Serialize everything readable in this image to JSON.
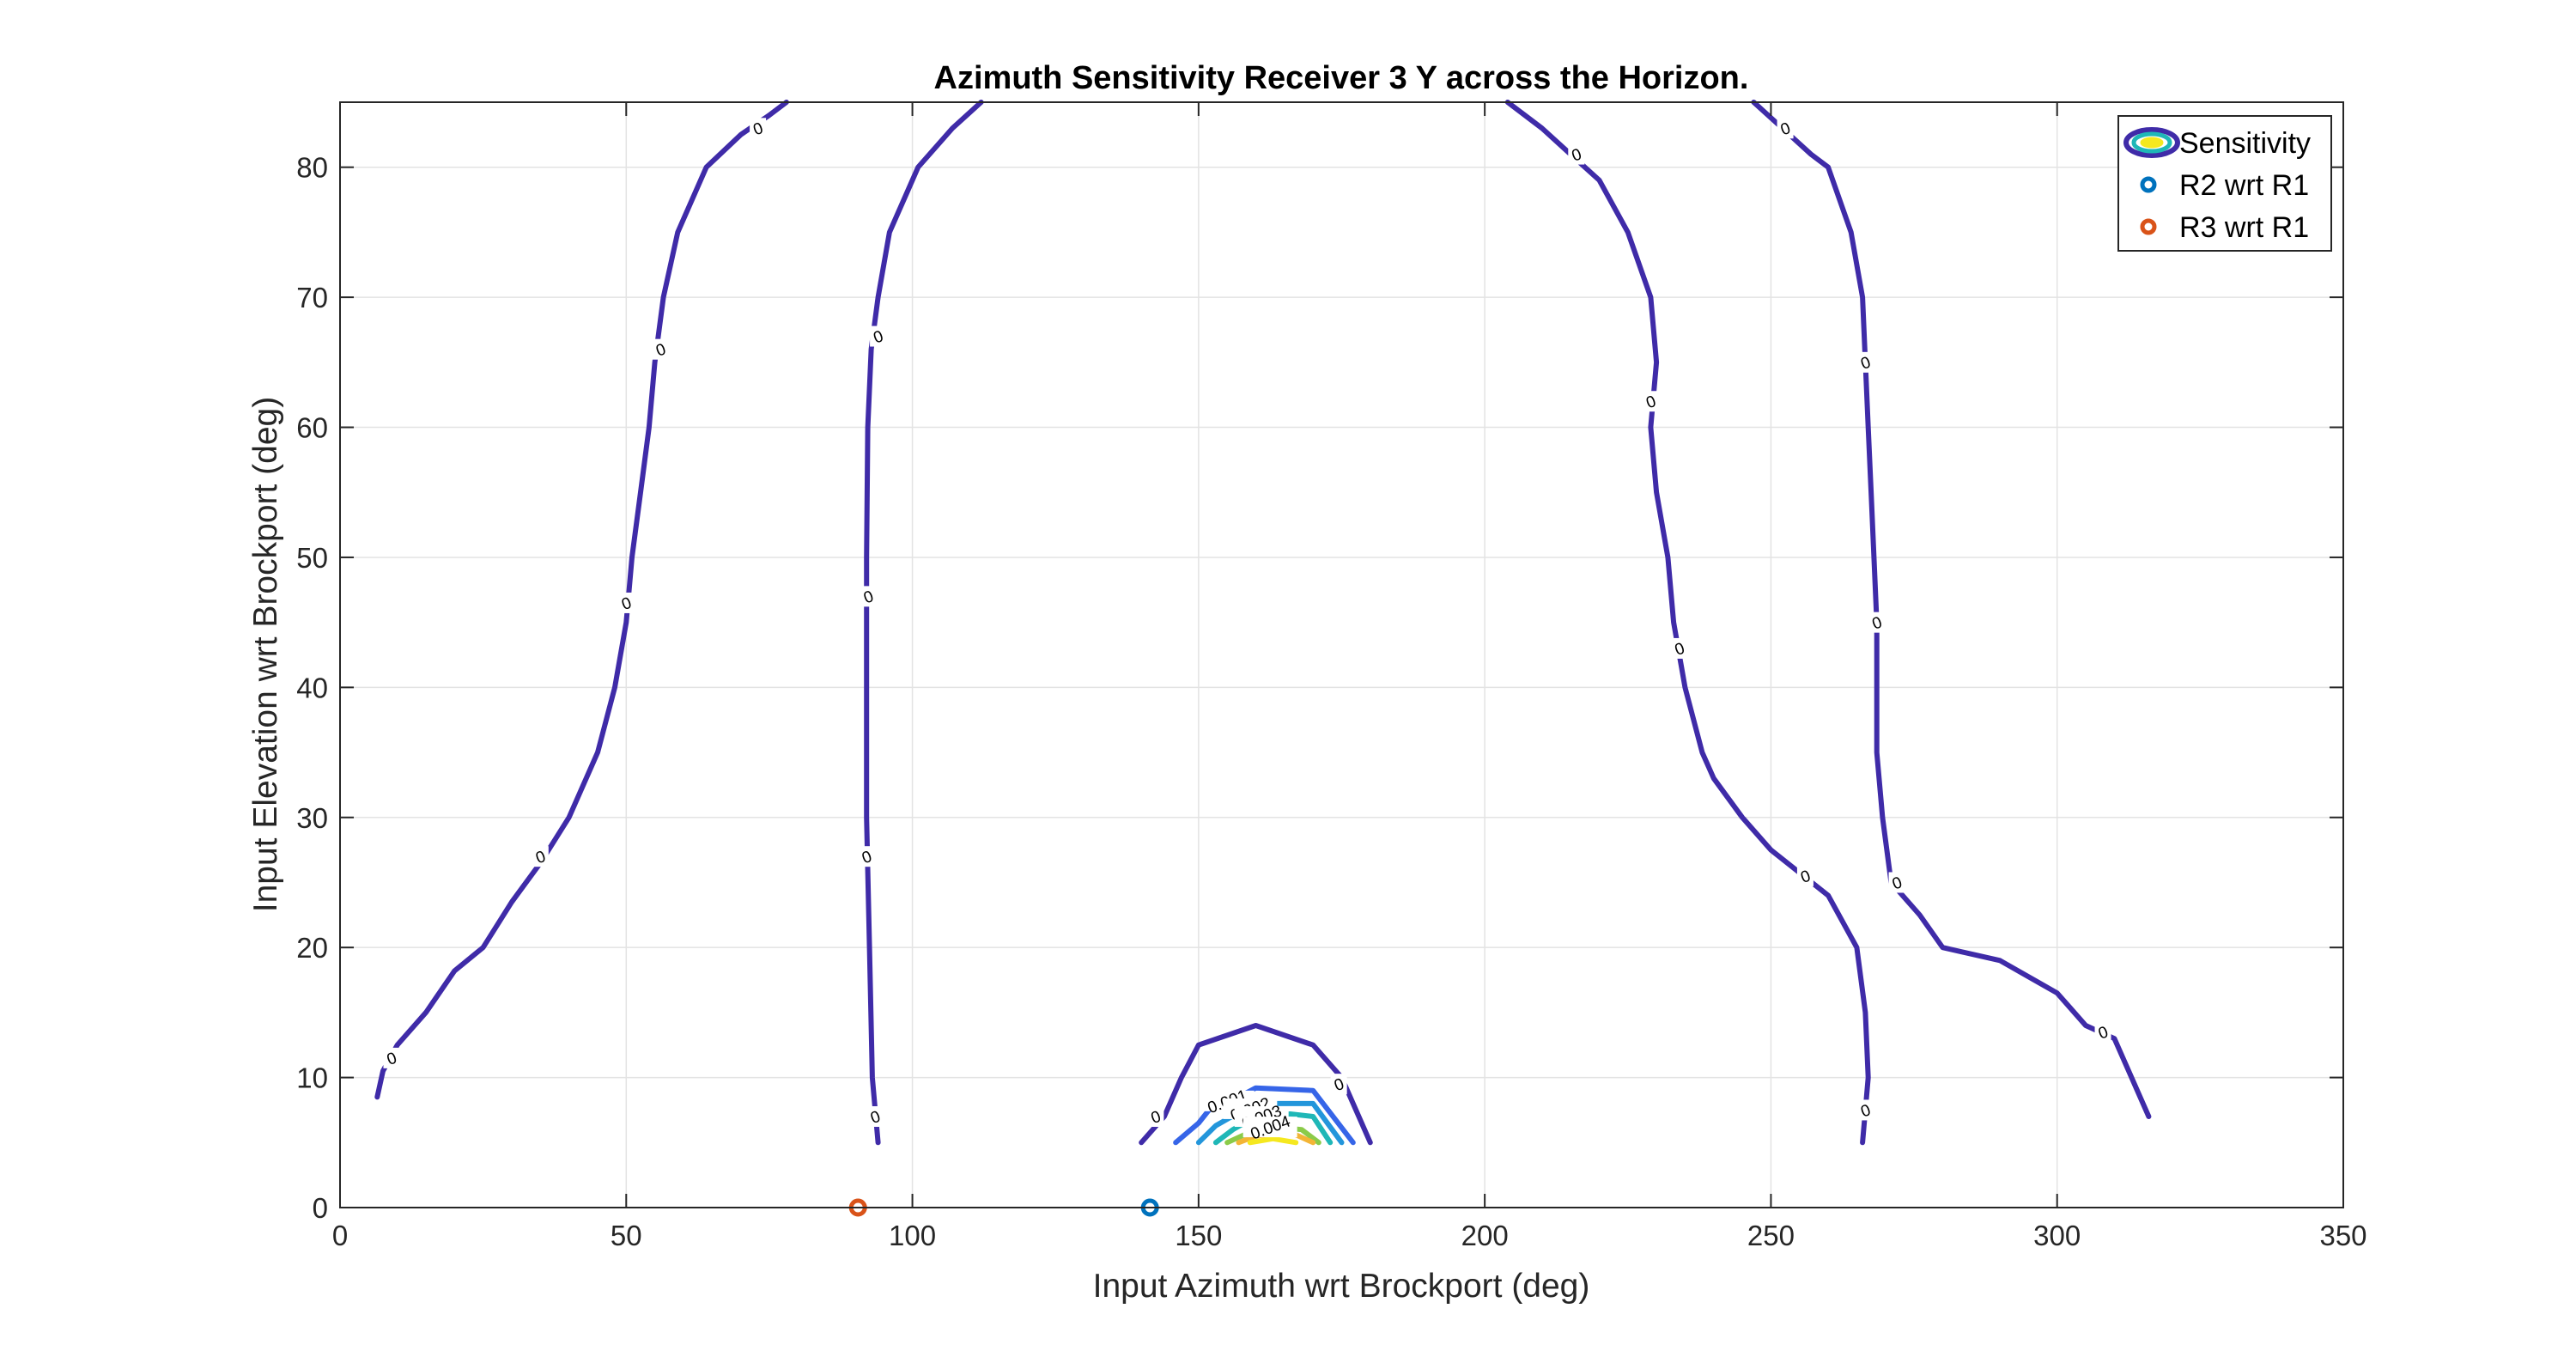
{
  "chart_data": {
    "type": "contour",
    "title": "Azimuth Sensitivity Receiver 3 Y across the Horizon.",
    "xlabel": "Input Azimuth wrt Brockport (deg)",
    "ylabel": "Input Elevation wrt Brockport (deg)",
    "xlim": [
      0,
      350
    ],
    "ylim": [
      0,
      85
    ],
    "xticks": [
      0,
      50,
      100,
      150,
      200,
      250,
      300,
      350
    ],
    "yticks": [
      0,
      10,
      20,
      30,
      40,
      50,
      60,
      70,
      80
    ],
    "grid": true,
    "legend": {
      "placement": "top-right",
      "entries": [
        {
          "label": "Sensitivity",
          "kind": "contour"
        },
        {
          "label": "R2 wrt R1",
          "kind": "point",
          "color": "#0072BD"
        },
        {
          "label": "R3 wrt R1",
          "kind": "point",
          "color": "#D95319"
        }
      ]
    },
    "contours": [
      {
        "level": 0,
        "color": "#3F2BA8",
        "points": [
          [
            6.5,
            8.5
          ],
          [
            7.5,
            10.5
          ],
          [
            10,
            12.5
          ],
          [
            15,
            15
          ],
          [
            20,
            18.2
          ],
          [
            25,
            20
          ],
          [
            30,
            23.5
          ],
          [
            35,
            26.5
          ],
          [
            40,
            30
          ],
          [
            45,
            35
          ],
          [
            48,
            40
          ],
          [
            50,
            45
          ],
          [
            51,
            50
          ],
          [
            52.5,
            55
          ],
          [
            54,
            60
          ],
          [
            55,
            65
          ],
          [
            56.5,
            70
          ],
          [
            59,
            75
          ],
          [
            64,
            80
          ],
          [
            70,
            82.5
          ],
          [
            75,
            84
          ],
          [
            78,
            85
          ]
        ]
      },
      {
        "level": 0,
        "color": "#3F2BA8",
        "points": [
          [
            94,
            5
          ],
          [
            93,
            10
          ],
          [
            92.5,
            20
          ],
          [
            92,
            30
          ],
          [
            92,
            40
          ],
          [
            92,
            50
          ],
          [
            92.2,
            60
          ],
          [
            92.8,
            66
          ],
          [
            94,
            70
          ],
          [
            96,
            75
          ],
          [
            99,
            78
          ],
          [
            101,
            80
          ],
          [
            107,
            83
          ],
          [
            112,
            85
          ]
        ]
      },
      {
        "level": 0,
        "color": "#3F2BA8",
        "points": [
          [
            204,
            85
          ],
          [
            210,
            83
          ],
          [
            215,
            81
          ],
          [
            220,
            79
          ],
          [
            225,
            75
          ],
          [
            229,
            70
          ],
          [
            230,
            65
          ],
          [
            229,
            60
          ],
          [
            230,
            55
          ],
          [
            232,
            50
          ],
          [
            233,
            45
          ],
          [
            235,
            40
          ],
          [
            238,
            35
          ],
          [
            240,
            33
          ],
          [
            245,
            30
          ],
          [
            250,
            27.5
          ],
          [
            260,
            24
          ],
          [
            265,
            20
          ],
          [
            266.5,
            15
          ],
          [
            267,
            10
          ],
          [
            266,
            5
          ]
        ]
      },
      {
        "level": 0,
        "color": "#3F2BA8",
        "points": [
          [
            247,
            85
          ],
          [
            252,
            83
          ],
          [
            257,
            81
          ],
          [
            260,
            80
          ],
          [
            264,
            75
          ],
          [
            266,
            70
          ],
          [
            266.5,
            65
          ],
          [
            267,
            60
          ],
          [
            267.5,
            55
          ],
          [
            268,
            50
          ],
          [
            268.5,
            45
          ],
          [
            268.5,
            40
          ],
          [
            268.5,
            35
          ],
          [
            269.5,
            30
          ],
          [
            271,
            25
          ],
          [
            276,
            22.5
          ],
          [
            280,
            20
          ],
          [
            290,
            19
          ],
          [
            300,
            16.5
          ],
          [
            305,
            14
          ],
          [
            310,
            13
          ],
          [
            313,
            10
          ],
          [
            316,
            7
          ]
        ]
      },
      {
        "level": 0,
        "color": "#3F2BA8",
        "points": [
          [
            140,
            5
          ],
          [
            144,
            7
          ],
          [
            147,
            10
          ],
          [
            150,
            12.5
          ],
          [
            160,
            14
          ],
          [
            170,
            12.5
          ],
          [
            175,
            10
          ],
          [
            180,
            5
          ]
        ]
      },
      {
        "level": 0.001,
        "color": "#3665E8",
        "points": [
          [
            146,
            5
          ],
          [
            150,
            6.5
          ],
          [
            152,
            7.6
          ],
          [
            157,
            8.5
          ],
          [
            160,
            9.2
          ],
          [
            170,
            9
          ],
          [
            177,
            5
          ]
        ]
      },
      {
        "level": 0.002,
        "color": "#2396DB",
        "points": [
          [
            150,
            5
          ],
          [
            153,
            6.3
          ],
          [
            157,
            7.3
          ],
          [
            163,
            8
          ],
          [
            170,
            8
          ],
          [
            175,
            5
          ]
        ]
      },
      {
        "level": 0.003,
        "color": "#1FB7B7",
        "points": [
          [
            153,
            5
          ],
          [
            156,
            6
          ],
          [
            160,
            7
          ],
          [
            166,
            7.2
          ],
          [
            170,
            7
          ],
          [
            173,
            5
          ]
        ]
      },
      {
        "level": 0.004,
        "color": "#8BCB49",
        "points": [
          [
            155,
            5
          ],
          [
            158,
            5.6
          ],
          [
            163,
            6.2
          ],
          [
            168,
            6
          ],
          [
            171,
            5
          ]
        ]
      },
      {
        "level": 0.004,
        "color": "#F3B536",
        "points": [
          [
            157,
            5
          ],
          [
            160,
            5.5
          ],
          [
            166,
            5.8
          ],
          [
            170,
            5
          ]
        ]
      },
      {
        "level": 0.004,
        "color": "#F5E81F",
        "points": [
          [
            159,
            5
          ],
          [
            163,
            5.3
          ],
          [
            167,
            5
          ]
        ]
      }
    ],
    "contour_labels": [
      {
        "text": "0",
        "x": 9,
        "y": 11.5
      },
      {
        "text": "0",
        "x": 35,
        "y": 27
      },
      {
        "text": "0",
        "x": 50,
        "y": 46.5
      },
      {
        "text": "0",
        "x": 56,
        "y": 66
      },
      {
        "text": "0",
        "x": 73,
        "y": 83
      },
      {
        "text": "0",
        "x": 93.5,
        "y": 7
      },
      {
        "text": "0",
        "x": 92,
        "y": 27
      },
      {
        "text": "0",
        "x": 92.3,
        "y": 47
      },
      {
        "text": "0",
        "x": 94,
        "y": 67
      },
      {
        "text": "0",
        "x": 216,
        "y": 81
      },
      {
        "text": "0",
        "x": 229,
        "y": 62
      },
      {
        "text": "0",
        "x": 234,
        "y": 43
      },
      {
        "text": "0",
        "x": 256,
        "y": 25.5
      },
      {
        "text": "0",
        "x": 266.5,
        "y": 7.5
      },
      {
        "text": "0",
        "x": 252.5,
        "y": 83
      },
      {
        "text": "0",
        "x": 266.5,
        "y": 65
      },
      {
        "text": "0",
        "x": 268.5,
        "y": 45
      },
      {
        "text": "0",
        "x": 272,
        "y": 25
      },
      {
        "text": "0",
        "x": 308,
        "y": 13.5
      },
      {
        "text": "0",
        "x": 142.5,
        "y": 7
      },
      {
        "text": "0",
        "x": 174.5,
        "y": 9.5
      },
      {
        "text": "0.001",
        "x": 155,
        "y": 8.2
      },
      {
        "text": "0.002",
        "x": 159,
        "y": 7.6
      },
      {
        "text": "0.003",
        "x": 161,
        "y": 7
      },
      {
        "text": "0.004",
        "x": 162.5,
        "y": 6.2
      }
    ],
    "points": [
      {
        "name": "R2 wrt R1",
        "x": 141.5,
        "y": 0,
        "color": "#0072BD"
      },
      {
        "name": "R3 wrt R1",
        "x": 90.5,
        "y": 0,
        "color": "#D95319"
      }
    ]
  }
}
